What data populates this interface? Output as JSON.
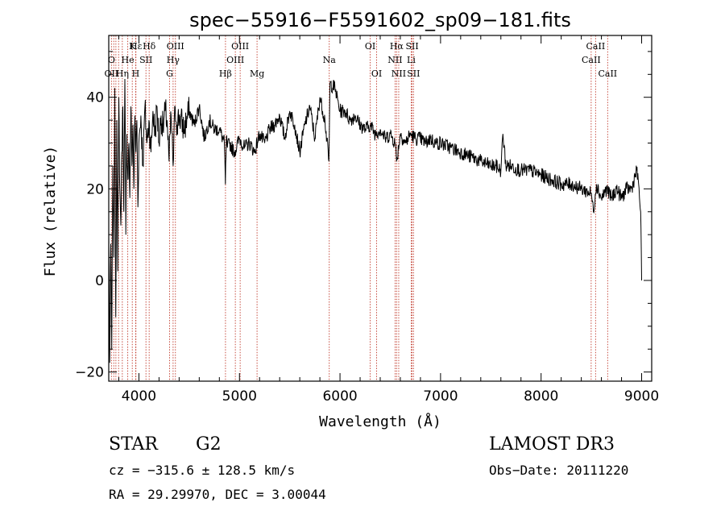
{
  "chart_data": {
    "type": "line",
    "title": "spec−55916−F5591602_sp09−181.fits",
    "xlabel": "Wavelength (Å)",
    "ylabel": "Flux (relative)",
    "xlim": [
      3700,
      9100
    ],
    "ylim": [
      -22,
      53.5
    ],
    "x_ticks": [
      4000,
      5000,
      6000,
      7000,
      8000,
      9000
    ],
    "x_tick_labels": [
      "4000",
      "5000",
      "6000",
      "7000",
      "8000",
      "9000"
    ],
    "y_ticks": [
      -20,
      0,
      20,
      40
    ],
    "y_tick_labels": [
      "−20",
      "0",
      "20",
      "40"
    ],
    "series": [
      {
        "name": "flux",
        "x": [
          3700,
          3710,
          3720,
          3730,
          3740,
          3750,
          3760,
          3770,
          3780,
          3790,
          3800,
          3810,
          3820,
          3830,
          3840,
          3850,
          3860,
          3870,
          3880,
          3890,
          3900,
          3910,
          3920,
          3930,
          3940,
          3950,
          3960,
          3970,
          3980,
          3990,
          4000,
          4020,
          4040,
          4060,
          4080,
          4100,
          4120,
          4140,
          4160,
          4180,
          4200,
          4220,
          4240,
          4260,
          4280,
          4300,
          4320,
          4340,
          4360,
          4380,
          4400,
          4450,
          4500,
          4550,
          4600,
          4650,
          4700,
          4750,
          4800,
          4850,
          4860,
          4870,
          4880,
          4900,
          4950,
          5000,
          5050,
          5100,
          5150,
          5200,
          5250,
          5300,
          5350,
          5400,
          5450,
          5500,
          5550,
          5600,
          5650,
          5700,
          5750,
          5800,
          5850,
          5890,
          5900,
          5950,
          6000,
          6050,
          6100,
          6150,
          6200,
          6250,
          6300,
          6350,
          6400,
          6450,
          6500,
          6550,
          6563,
          6600,
          6650,
          6700,
          6750,
          6800,
          6850,
          6900,
          6950,
          7000,
          7100,
          7200,
          7300,
          7400,
          7500,
          7550,
          7600,
          7620,
          7650,
          7700,
          7800,
          7900,
          8000,
          8100,
          8200,
          8300,
          8400,
          8500,
          8520,
          8550,
          8600,
          8650,
          8700,
          8750,
          8800,
          8850,
          8900,
          8950,
          8970,
          8990,
          9000
        ],
        "values": [
          10,
          -18,
          8,
          -15,
          25,
          5,
          42,
          -8,
          35,
          2,
          40,
          20,
          12,
          28,
          38,
          15,
          44,
          10,
          32,
          22,
          30,
          18,
          38,
          25,
          34,
          20,
          36,
          28,
          35,
          16,
          30,
          36,
          25,
          38,
          30,
          35,
          28,
          37,
          32,
          38,
          30,
          36,
          33,
          37,
          35,
          26,
          36,
          25,
          38,
          34,
          36,
          33,
          37,
          34,
          38,
          31,
          35,
          33,
          33,
          30,
          21,
          31,
          29,
          30,
          28,
          31,
          29,
          30,
          28,
          32,
          30,
          33,
          34,
          36,
          31,
          37,
          34,
          28,
          34,
          38,
          31,
          40,
          35,
          26,
          43,
          42,
          37,
          37,
          35,
          36,
          34,
          33,
          34,
          32,
          33,
          31,
          32,
          30,
          26,
          32,
          30,
          32,
          31,
          31,
          30,
          31,
          30,
          30,
          29,
          28,
          27,
          26,
          25,
          25,
          24,
          32,
          25,
          25,
          24,
          24,
          23,
          22,
          21,
          21,
          20,
          19,
          15,
          21,
          18,
          20,
          18,
          20,
          18,
          20,
          20,
          24,
          21,
          15,
          0
        ]
      }
    ],
    "line_markers": [
      {
        "label": "Hε",
        "wavelength": 3970,
        "row": 0
      },
      {
        "label": "K",
        "wavelength": 3934,
        "row": 0
      },
      {
        "label": "Hδ",
        "wavelength": 4102,
        "row": 0
      },
      {
        "label": "OIII",
        "wavelength": 4363,
        "row": 0
      },
      {
        "label": "OIII",
        "wavelength": 5007,
        "row": 0
      },
      {
        "label": "OI",
        "wavelength": 6300,
        "row": 0
      },
      {
        "label": "Hα",
        "wavelength": 6563,
        "row": 0
      },
      {
        "label": "SII",
        "wavelength": 6717,
        "row": 0
      },
      {
        "label": "CaII",
        "wavelength": 8542,
        "row": 0
      },
      {
        "label": "O",
        "wavelength": 3727,
        "row": 1
      },
      {
        "label": "He",
        "wavelength": 3889,
        "row": 1
      },
      {
        "label": "SII",
        "wavelength": 4070,
        "row": 1
      },
      {
        "label": "Hγ",
        "wavelength": 4340,
        "row": 1
      },
      {
        "label": "OIII",
        "wavelength": 4959,
        "row": 1
      },
      {
        "label": "Na",
        "wavelength": 5893,
        "row": 1
      },
      {
        "label": "NII",
        "wavelength": 6548,
        "row": 1
      },
      {
        "label": "Li",
        "wavelength": 6708,
        "row": 1
      },
      {
        "label": "CaII",
        "wavelength": 8498,
        "row": 1
      },
      {
        "label": "OII",
        "wavelength": 3727,
        "row": 2
      },
      {
        "label": "Hη",
        "wavelength": 3835,
        "row": 2
      },
      {
        "label": "H",
        "wavelength": 3968,
        "row": 2
      },
      {
        "label": "G",
        "wavelength": 4305,
        "row": 2
      },
      {
        "label": "Hβ",
        "wavelength": 4861,
        "row": 2
      },
      {
        "label": "Mg",
        "wavelength": 5175,
        "row": 2
      },
      {
        "label": "OI",
        "wavelength": 6364,
        "row": 2
      },
      {
        "label": "NII",
        "wavelength": 6584,
        "row": 2
      },
      {
        "label": "SII",
        "wavelength": 6731,
        "row": 2
      },
      {
        "label": "CaII",
        "wavelength": 8662,
        "row": 2
      }
    ],
    "line_positions": [
      3727,
      3750,
      3771,
      3798,
      3835,
      3889,
      3934,
      3968,
      3970,
      4070,
      4102,
      4305,
      4340,
      4363,
      4861,
      4959,
      5007,
      5175,
      5893,
      6300,
      6364,
      6548,
      6563,
      6584,
      6708,
      6717,
      6731,
      8498,
      8542,
      8662
    ]
  },
  "info": {
    "object_class": "STAR",
    "subclass": "G2",
    "survey": "LAMOST DR3",
    "redshift": "cz = −315.6 ± 128.5 km/s",
    "obs_date": "Obs−Date: 20111220",
    "coords": "RA =  29.29970, DEC =   3.00044"
  }
}
